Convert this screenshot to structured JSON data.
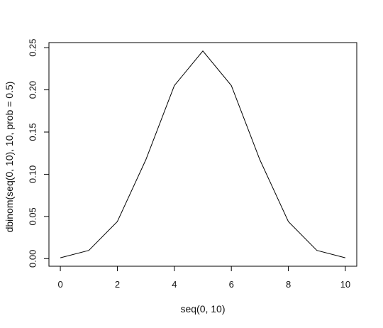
{
  "chart_data": {
    "type": "line",
    "xlabel": "seq(0, 10)",
    "ylabel": "dbinom(seq(0, 10), 10, prob = 0.5)",
    "x": [
      0,
      1,
      2,
      3,
      4,
      5,
      6,
      7,
      8,
      9,
      10
    ],
    "series": [
      {
        "values": [
          0.0009765625,
          0.009765625,
          0.0439453125,
          0.1171875,
          0.205078125,
          0.24609375,
          0.205078125,
          0.1171875,
          0.0439453125,
          0.009765625,
          0.0009765625
        ]
      }
    ],
    "xlim": [
      -0.4,
      10.4
    ],
    "ylim": [
      -0.009,
      0.256
    ],
    "xticks": [
      0,
      2,
      4,
      6,
      8,
      10
    ],
    "xtick_labels": [
      "0",
      "2",
      "4",
      "6",
      "8",
      "10"
    ],
    "yticks": [
      0,
      0.05,
      0.1,
      0.15,
      0.2,
      0.25
    ],
    "ytick_labels": [
      "0.00",
      "0.05",
      "0.10",
      "0.15",
      "0.20",
      "0.25"
    ],
    "grid": false,
    "line_color": "#000000",
    "axis_color": "#000000"
  }
}
